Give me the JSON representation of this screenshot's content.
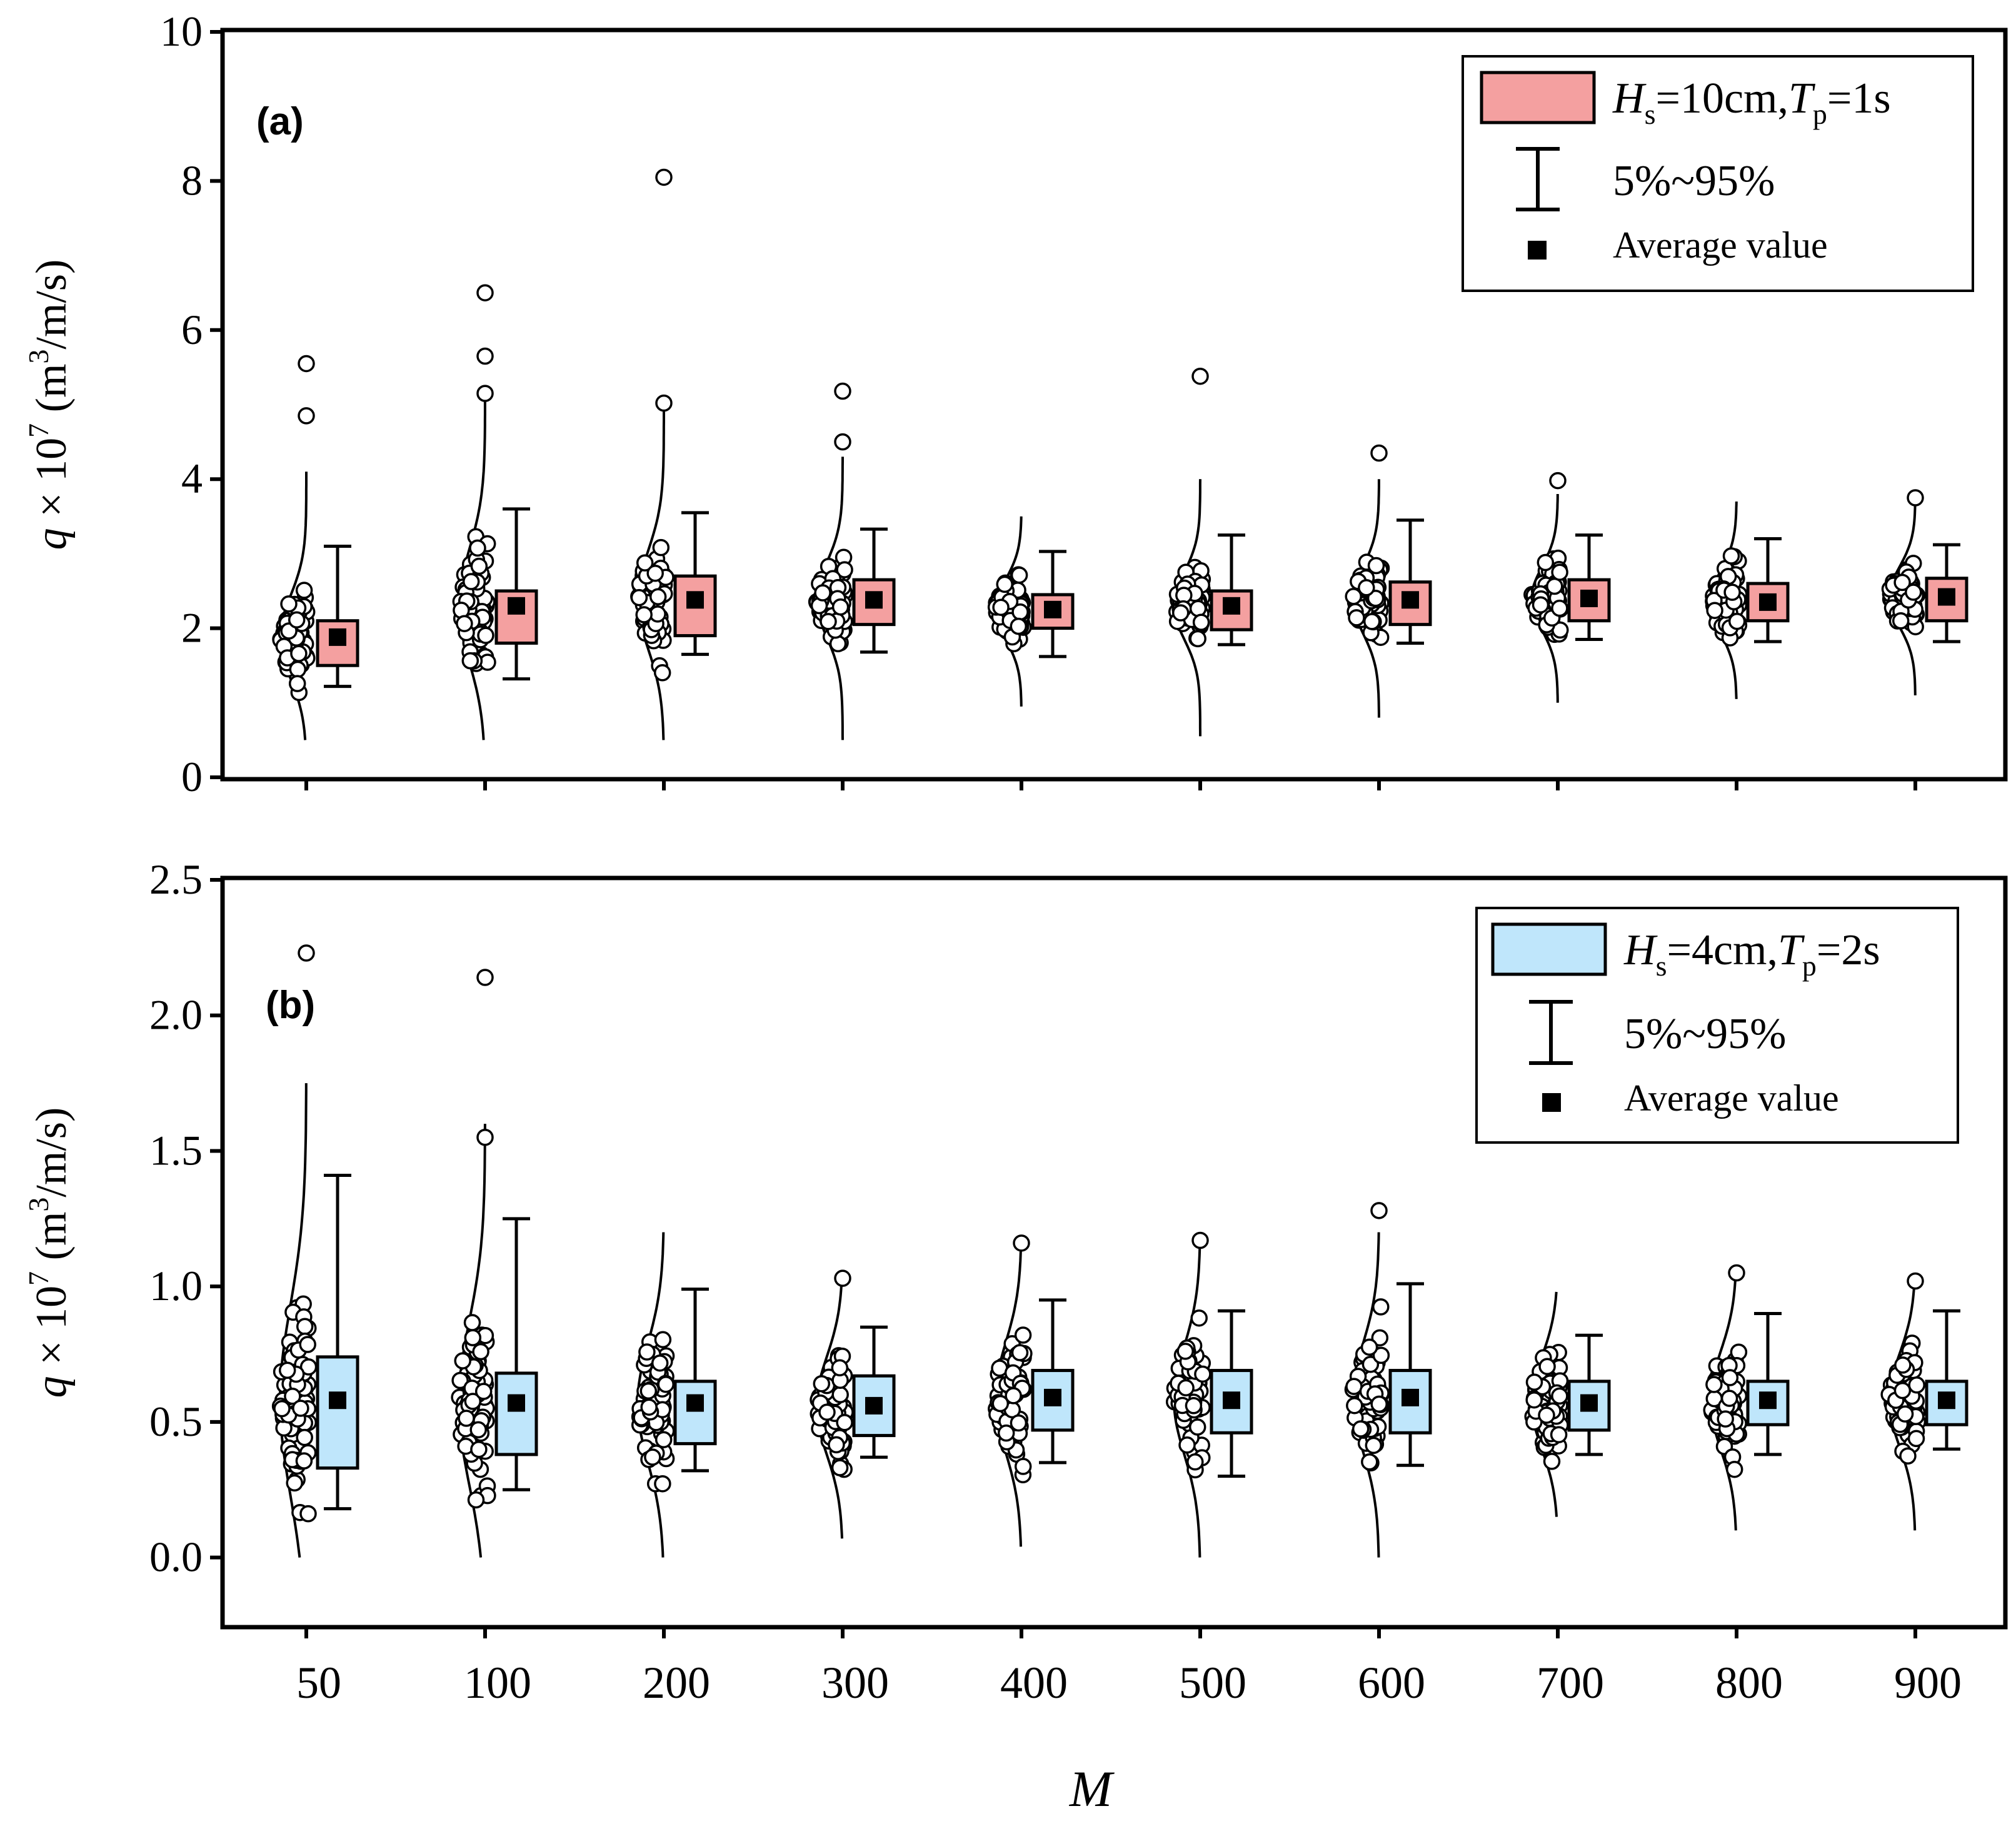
{
  "figure": {
    "xlabel": "M",
    "ylabel_prefix": "q × 10",
    "ylabel_exp": "7",
    "ylabel_unit_open": "(m",
    "ylabel_unit_exp": "3",
    "ylabel_unit_close": "/m/s)",
    "categories": [
      "50",
      "100",
      "200",
      "300",
      "400",
      "500",
      "600",
      "700",
      "800",
      "900"
    ]
  },
  "chart_data": [
    {
      "type": "box",
      "panel_label": "(a)",
      "ylim": [
        0,
        10
      ],
      "yticks": [
        "0",
        "2",
        "4",
        "6",
        "8",
        "10"
      ],
      "ytick_values": [
        0,
        2,
        4,
        6,
        8,
        10
      ],
      "color": "#f4a0a0",
      "legend": {
        "series_H": "H",
        "series_H_sub": "s",
        "series_H_val": "=10cm,",
        "series_T": "T",
        "series_T_sub": "p",
        "series_T_val": "=1s",
        "whisker_label": "5%~95%",
        "mean_label": "Average value"
      },
      "categories": [
        "50",
        "100",
        "200",
        "300",
        "400",
        "500",
        "600",
        "700",
        "800",
        "900"
      ],
      "q1": [
        1.5,
        1.8,
        1.9,
        2.05,
        2.0,
        1.98,
        2.05,
        2.1,
        2.1,
        2.1
      ],
      "q3": [
        2.1,
        2.5,
        2.7,
        2.65,
        2.45,
        2.5,
        2.62,
        2.65,
        2.6,
        2.67
      ],
      "p5": [
        1.22,
        1.32,
        1.65,
        1.68,
        1.62,
        1.78,
        1.8,
        1.85,
        1.82,
        1.82
      ],
      "p95": [
        3.1,
        3.6,
        3.55,
        3.33,
        3.03,
        3.25,
        3.45,
        3.25,
        3.2,
        3.12
      ],
      "mean": [
        1.88,
        2.3,
        2.38,
        2.38,
        2.25,
        2.3,
        2.38,
        2.4,
        2.35,
        2.42
      ],
      "outliers": [
        [
          5.55,
          4.85
        ],
        [
          6.5,
          5.65,
          5.15
        ],
        [
          8.05,
          5.02
        ],
        [
          5.18,
          4.5
        ],
        [],
        [
          5.38
        ],
        [
          4.35
        ],
        [
          3.98
        ],
        [],
        [
          3.75
        ]
      ],
      "dist_sd": [
        0.55,
        0.75,
        0.65,
        0.5,
        0.4,
        0.45,
        0.45,
        0.42,
        0.42,
        0.4
      ],
      "dist_top": [
        4.1,
        5.1,
        5.0,
        4.3,
        3.5,
        4.0,
        4.0,
        3.8,
        3.7,
        3.7
      ],
      "dist_bottom": [
        0.5,
        0.5,
        0.5,
        0.5,
        0.95,
        0.55,
        0.8,
        1.0,
        1.05,
        1.1
      ]
    },
    {
      "type": "box",
      "panel_label": "(b)",
      "ylim": [
        -0.25,
        2.5
      ],
      "yticks": [
        "0.0",
        "0.5",
        "1.0",
        "1.5",
        "2.0",
        "2.5"
      ],
      "ytick_values": [
        0,
        0.5,
        1.0,
        1.5,
        2.0,
        2.5
      ],
      "color": "#bfe6fb",
      "legend": {
        "series_H": "H",
        "series_H_sub": "s",
        "series_H_val": "=4cm,",
        "series_T": "T",
        "series_T_sub": "p",
        "series_T_val": "=2s",
        "whisker_label": "5%~95%",
        "mean_label": "Average value"
      },
      "categories": [
        "50",
        "100",
        "200",
        "300",
        "400",
        "500",
        "600",
        "700",
        "800",
        "900"
      ],
      "q1": [
        0.33,
        0.38,
        0.42,
        0.45,
        0.47,
        0.46,
        0.46,
        0.47,
        0.49,
        0.49
      ],
      "q3": [
        0.74,
        0.68,
        0.65,
        0.67,
        0.69,
        0.69,
        0.69,
        0.65,
        0.65,
        0.65
      ],
      "p5": [
        0.18,
        0.25,
        0.32,
        0.37,
        0.35,
        0.3,
        0.34,
        0.38,
        0.38,
        0.4
      ],
      "p95": [
        1.41,
        1.25,
        0.99,
        0.85,
        0.95,
        0.91,
        1.01,
        0.82,
        0.9,
        0.91
      ],
      "mean": [
        0.58,
        0.57,
        0.57,
        0.56,
        0.59,
        0.58,
        0.59,
        0.57,
        0.58,
        0.58
      ],
      "outliers": [
        [
          2.23
        ],
        [
          2.14,
          1.55
        ],
        [],
        [
          1.03
        ],
        [
          1.16
        ],
        [
          1.17
        ],
        [
          1.28
        ],
        [],
        [
          1.05
        ],
        [
          1.02
        ]
      ],
      "dist_sd": [
        0.35,
        0.3,
        0.22,
        0.18,
        0.2,
        0.2,
        0.2,
        0.17,
        0.18,
        0.17
      ],
      "dist_top": [
        1.75,
        1.6,
        1.2,
        1.05,
        1.15,
        1.15,
        1.2,
        0.98,
        1.05,
        1.05
      ],
      "dist_bottom": [
        0.0,
        0.0,
        0.0,
        0.07,
        0.04,
        0.0,
        0.0,
        0.15,
        0.1,
        0.1
      ]
    }
  ]
}
